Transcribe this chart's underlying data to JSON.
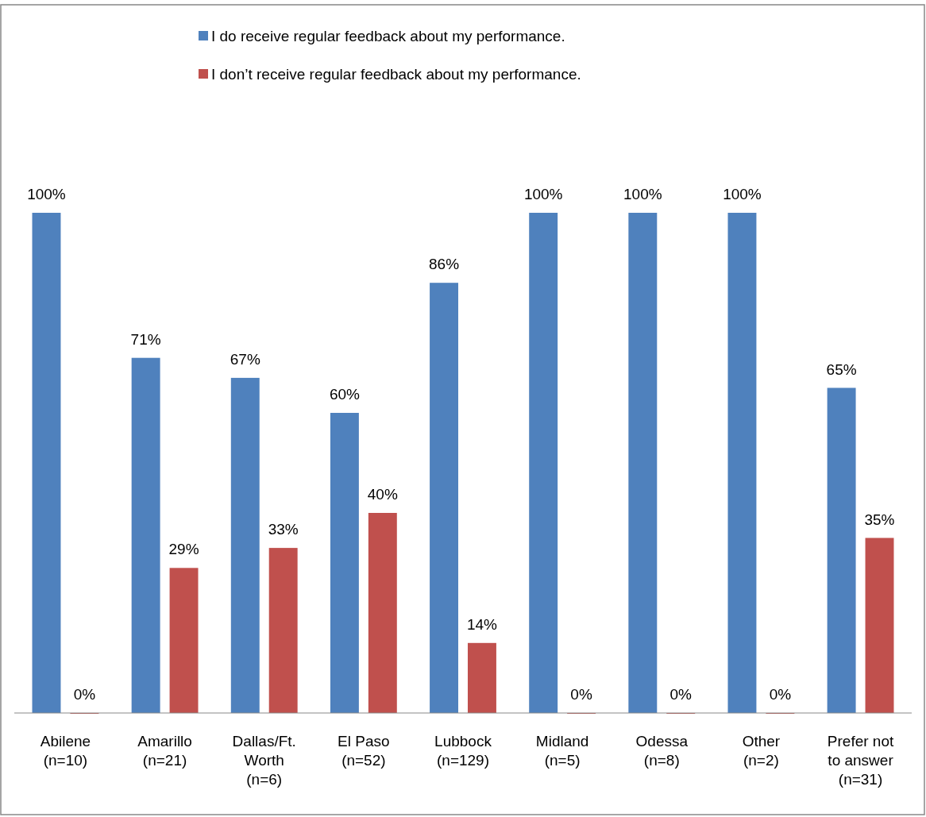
{
  "chart_data": {
    "type": "bar",
    "categories": [
      "Abilene\n(n=10)",
      "Amarillo\n(n=21)",
      "Dallas/Ft.\nWorth\n(n=6)",
      "El Paso\n(n=52)",
      "Lubbock\n(n=129)",
      "Midland\n(n=5)",
      "Odessa\n(n=8)",
      "Other\n(n=2)",
      "Prefer not\nto answer\n(n=31)"
    ],
    "series": [
      {
        "name": "I do receive regular feedback about my performance.",
        "color": "#4f81bd",
        "values": [
          100,
          71,
          67,
          60,
          86,
          100,
          100,
          100,
          65
        ],
        "value_labels": [
          "100%",
          "71%",
          "67%",
          "60%",
          "86%",
          "100%",
          "100%",
          "100%",
          "65%"
        ]
      },
      {
        "name": "I don’t receive regular feedback about my performance.",
        "color": "#c0504d",
        "values": [
          0,
          29,
          33,
          40,
          14,
          0,
          0,
          0,
          35
        ],
        "value_labels": [
          "0%",
          "29%",
          "33%",
          "40%",
          "14%",
          "0%",
          "0%",
          "0%",
          "35%"
        ]
      }
    ],
    "legend": "top"
  }
}
